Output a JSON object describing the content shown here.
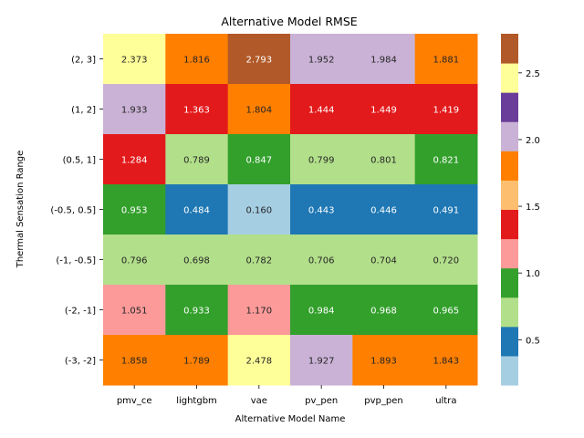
{
  "chart_data": {
    "type": "heatmap",
    "title": "Alternative Model RMSE",
    "xlabel": "Alternative Model Name",
    "ylabel": "Thermal Sensation Range",
    "x_categories": [
      "pmv_ce",
      "lightgbm",
      "vae",
      "pv_pen",
      "pvp_pen",
      "ultra"
    ],
    "y_categories": [
      "(2, 3]",
      "(1, 2]",
      "(0.5, 1]",
      "(-0.5, 0.5]",
      "(-1, -0.5]",
      "(-2, -1]",
      "(-3, -2]"
    ],
    "values": [
      [
        2.373,
        1.816,
        2.793,
        1.952,
        1.984,
        1.881
      ],
      [
        1.933,
        1.363,
        1.804,
        1.444,
        1.449,
        1.419
      ],
      [
        1.284,
        0.789,
        0.847,
        0.799,
        0.801,
        0.821
      ],
      [
        0.953,
        0.484,
        0.16,
        0.443,
        0.446,
        0.491
      ],
      [
        0.796,
        0.698,
        0.782,
        0.706,
        0.704,
        0.72
      ],
      [
        1.051,
        0.933,
        1.17,
        0.984,
        0.968,
        0.965
      ],
      [
        1.858,
        1.789,
        2.478,
        1.927,
        1.893,
        1.843
      ]
    ],
    "value_format": "3 decimals",
    "colormap": "Paired",
    "colormap_colors": [
      "#a6cee3",
      "#1f78b4",
      "#b2df8a",
      "#33a02c",
      "#fb9a99",
      "#e31a1c",
      "#fdbf6f",
      "#ff7f00",
      "#cab2d6",
      "#6a3d9a",
      "#ffff99",
      "#b15928"
    ],
    "vmin": 0.16,
    "vmax": 2.793,
    "colorbar_ticks": [
      0.5,
      1.0,
      1.5,
      2.0,
      2.5
    ],
    "colorbar_tick_labels": [
      "0.5",
      "1.0",
      "1.5",
      "2.0",
      "2.5"
    ],
    "grid": false,
    "legend": "colorbar-right"
  }
}
